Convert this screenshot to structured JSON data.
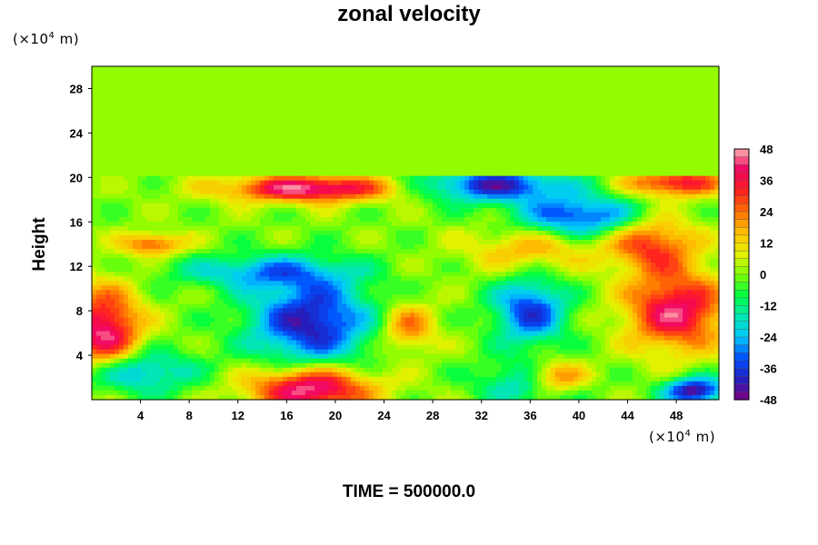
{
  "chart_data": {
    "type": "heatmap",
    "title": "zonal velocity",
    "xlabel": "",
    "ylabel": "Height",
    "x_unit_text": "(×10",
    "x_unit_exp": "4",
    "x_unit_suffix": " m)",
    "y_unit_text": "(×10",
    "y_unit_exp": "4",
    "y_unit_suffix": " m)",
    "xlim": [
      0,
      51.5
    ],
    "ylim": [
      0,
      30
    ],
    "x_ticks": [
      4,
      8,
      12,
      16,
      20,
      24,
      28,
      32,
      36,
      40,
      44,
      48
    ],
    "y_ticks": [
      4,
      8,
      12,
      16,
      20,
      24,
      28
    ],
    "colorbar": {
      "range": [
        -48,
        48
      ],
      "ticks": [
        48,
        36,
        24,
        12,
        0,
        -12,
        -24,
        -36,
        -48
      ],
      "levels": 32,
      "colormap": [
        "#800080",
        "#2020c0",
        "#0050ff",
        "#00c8ff",
        "#00e8b0",
        "#00ff40",
        "#80ff00",
        "#e8f000",
        "#ffc000",
        "#ff7000",
        "#ff2020",
        "#f00060",
        "#ffb0b0"
      ]
    },
    "features": [
      {
        "x": 18,
        "y": 7,
        "value": -42,
        "rx": 5,
        "ry": 4
      },
      {
        "x": 33,
        "y": 19.3,
        "value": -40,
        "rx": 6,
        "ry": 1.5
      },
      {
        "x": 40,
        "y": 16.5,
        "value": -36,
        "rx": 5,
        "ry": 1.8
      },
      {
        "x": 36,
        "y": 8,
        "value": -36,
        "rx": 3,
        "ry": 3
      },
      {
        "x": 14,
        "y": 11.5,
        "value": -24,
        "rx": 7,
        "ry": 1.5
      },
      {
        "x": 3,
        "y": 2.5,
        "value": -30,
        "rx": 5,
        "ry": 2
      },
      {
        "x": 49.5,
        "y": 0.8,
        "value": -46,
        "rx": 2.5,
        "ry": 1.2
      },
      {
        "x": 36,
        "y": 1.5,
        "value": -24,
        "rx": 4,
        "ry": 2
      },
      {
        "x": 18,
        "y": 1,
        "value": 48,
        "rx": 5,
        "ry": 2
      },
      {
        "x": 18,
        "y": 19,
        "value": 45,
        "rx": 7,
        "ry": 1.2
      },
      {
        "x": 1,
        "y": 6,
        "value": 44,
        "rx": 3,
        "ry": 4
      },
      {
        "x": 48,
        "y": 8,
        "value": 42,
        "rx": 4,
        "ry": 3.5
      },
      {
        "x": 48,
        "y": 19.5,
        "value": 36,
        "rx": 4,
        "ry": 1.2
      },
      {
        "x": 46,
        "y": 14,
        "value": 30,
        "rx": 3.5,
        "ry": 2.5
      },
      {
        "x": 26,
        "y": 6.5,
        "value": 24,
        "rx": 2.2,
        "ry": 2.2
      },
      {
        "x": 38,
        "y": 2,
        "value": 36,
        "rx": 2.5,
        "ry": 1.5
      },
      {
        "x": 5,
        "y": 14,
        "value": 28,
        "rx": 2.5,
        "ry": 1
      },
      {
        "x": 36,
        "y": 13.5,
        "value": 18,
        "rx": 5,
        "ry": 2
      }
    ]
  },
  "footer": {
    "time_text": "TIME = 500000.0"
  }
}
